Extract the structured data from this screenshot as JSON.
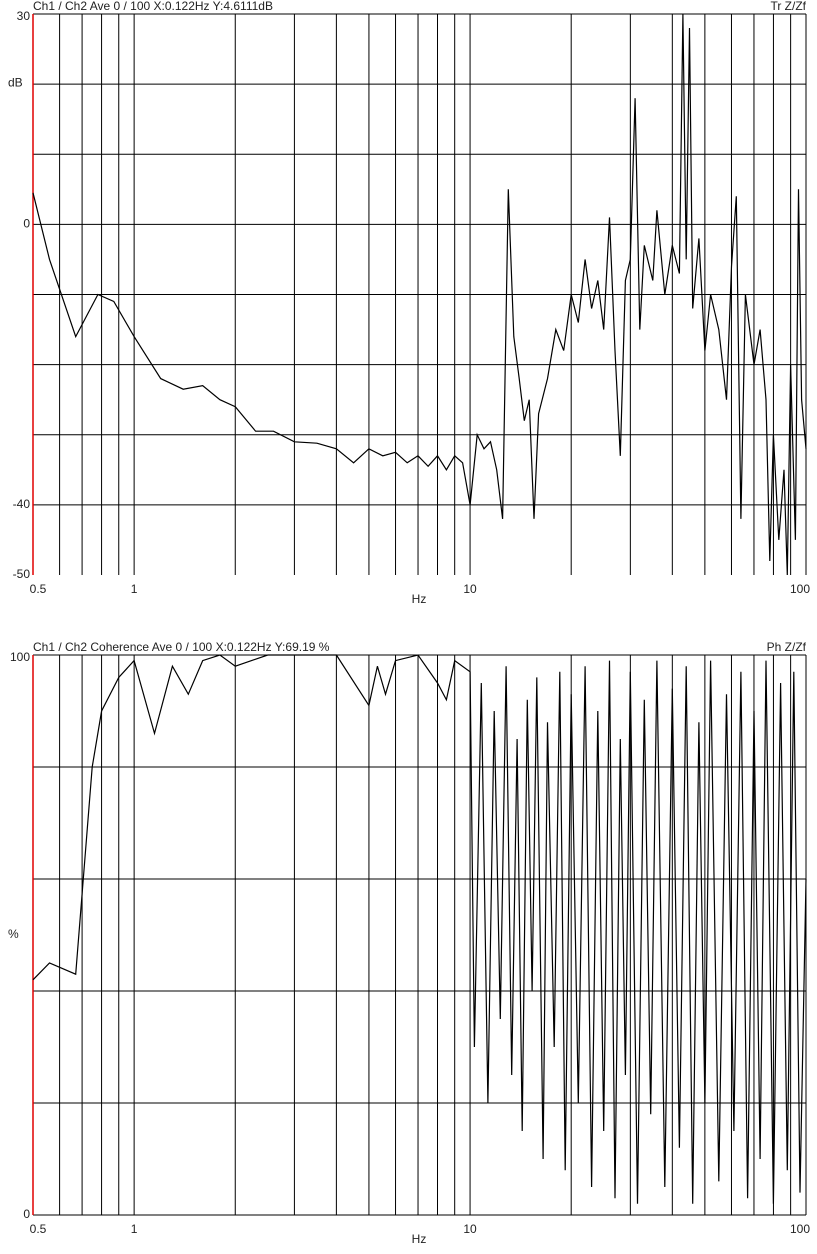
{
  "chart_data": [
    {
      "type": "line",
      "title": "Ch1 / Ch2  Ave 0 / 100  X:0.122Hz  Y:4.6111dB",
      "mode_label": "Tr Z/Zf",
      "x_label": "Hz",
      "y_label": "dB",
      "xscale": "log",
      "grid": true,
      "axis_color": "#e00000",
      "xlim": [
        0.5,
        100
      ],
      "xticks": [
        0.5,
        1,
        10,
        100
      ],
      "xgrid": [
        0.6,
        0.7,
        0.8,
        0.9,
        1,
        2,
        3,
        4,
        5,
        6,
        7,
        8,
        9,
        10,
        20,
        30,
        40,
        50,
        60,
        70,
        80,
        90
      ],
      "ylim": [
        -50,
        30
      ],
      "yticks": [
        30,
        0,
        -40,
        -50
      ],
      "ygrid": [
        30,
        20,
        10,
        0,
        -10,
        -20,
        -30,
        -40
      ],
      "x": [
        0.5,
        0.56,
        0.67,
        0.78,
        0.87,
        1.0,
        1.2,
        1.4,
        1.6,
        1.8,
        2.0,
        2.3,
        2.6,
        3.0,
        3.5,
        4.0,
        4.5,
        5.0,
        5.5,
        6.0,
        6.5,
        7.0,
        7.5,
        8.0,
        8.5,
        9.0,
        9.5,
        10,
        10.5,
        11,
        11.5,
        12,
        12.5,
        13,
        13.5,
        14,
        14.5,
        15,
        15.5,
        16,
        17,
        18,
        19,
        20,
        21,
        22,
        23,
        24,
        25,
        26,
        27,
        28,
        29,
        30,
        31,
        32,
        33,
        35,
        36,
        38,
        40,
        42,
        43,
        44,
        45,
        46,
        48,
        50,
        52,
        55,
        58,
        60,
        62,
        64,
        66,
        70,
        73,
        76,
        78,
        80,
        83,
        86,
        88,
        90,
        93,
        95,
        97,
        100
      ],
      "series": [
        {
          "color": "#000000",
          "values": [
            4.5,
            -5,
            -16,
            -10,
            -11,
            -16,
            -22,
            -23.5,
            -23,
            -25,
            -26,
            -29.5,
            -29.5,
            -31,
            -31.2,
            -32,
            -34,
            -32,
            -33,
            -32.5,
            -34,
            -33,
            -34.5,
            -33,
            -35,
            -33,
            -34,
            -40,
            -30,
            -32,
            -31,
            -35,
            -42,
            5,
            -16,
            -22,
            -28,
            -25,
            -42,
            -27,
            -22,
            -15,
            -18,
            -10,
            -14,
            -5,
            -12,
            -8,
            -15,
            1,
            -18,
            -33,
            -8,
            -5,
            18,
            -15,
            -3,
            -8,
            2,
            -10,
            -3,
            -7,
            30,
            -5,
            28,
            -12,
            -2,
            -18,
            -10,
            -15,
            -25,
            -6,
            4,
            -42,
            -10,
            -20,
            -15,
            -25,
            -48,
            -30,
            -45,
            -35,
            -50,
            -20,
            -45,
            5,
            -25,
            -32
          ]
        }
      ]
    },
    {
      "type": "line",
      "title": "Ch1 / Ch2  Coherence Ave 0 / 100  X:0.122Hz  Y:69.19 %",
      "mode_label": "Ph Z/Zf",
      "x_label": "Hz",
      "y_label": "%",
      "xscale": "log",
      "grid": true,
      "axis_color": "#e00000",
      "xlim": [
        0.5,
        100
      ],
      "xticks": [
        0.5,
        1,
        10,
        100
      ],
      "xgrid": [
        0.6,
        0.7,
        0.8,
        0.9,
        1,
        2,
        3,
        4,
        5,
        6,
        7,
        8,
        9,
        10,
        20,
        30,
        40,
        50,
        60,
        70,
        80,
        90
      ],
      "ylim": [
        0,
        100
      ],
      "yticks": [
        100,
        0
      ],
      "ygrid": [
        100,
        80,
        60,
        40,
        20,
        0
      ],
      "x": [
        0.5,
        0.56,
        0.67,
        0.75,
        0.8,
        0.9,
        1.0,
        1.15,
        1.3,
        1.45,
        1.6,
        1.8,
        2.0,
        2.5,
        3,
        4,
        5,
        5.3,
        5.6,
        6,
        7,
        8,
        8.5,
        9,
        10,
        10.3,
        10.8,
        11.3,
        11.8,
        12.3,
        12.8,
        13.3,
        13.8,
        14.3,
        14.8,
        15.3,
        15.8,
        16.5,
        17,
        17.8,
        18.5,
        19.2,
        20,
        21,
        22,
        23,
        24,
        25,
        26,
        27,
        28,
        29,
        30,
        31.5,
        33,
        34.5,
        36,
        38,
        40,
        42,
        44,
        46,
        48,
        50,
        52,
        55,
        58,
        61,
        64,
        67,
        70,
        73,
        76,
        80,
        84,
        88,
        92,
        96,
        100
      ],
      "series": [
        {
          "color": "#000000",
          "values": [
            42,
            45,
            43,
            80,
            90,
            96,
            99,
            86,
            98,
            93,
            99,
            100,
            98,
            100,
            100,
            100,
            91,
            98,
            93,
            99,
            100,
            95,
            92,
            99,
            97,
            30,
            95,
            20,
            90,
            35,
            98,
            25,
            85,
            15,
            92,
            40,
            96,
            10,
            88,
            30,
            97,
            8,
            93,
            20,
            98,
            5,
            90,
            15,
            99,
            3,
            85,
            25,
            97,
            2,
            92,
            18,
            99,
            5,
            94,
            12,
            98,
            2,
            88,
            20,
            99,
            6,
            93,
            15,
            97,
            3,
            90,
            10,
            99,
            2,
            95,
            8,
            97,
            4,
            60
          ]
        }
      ]
    }
  ]
}
